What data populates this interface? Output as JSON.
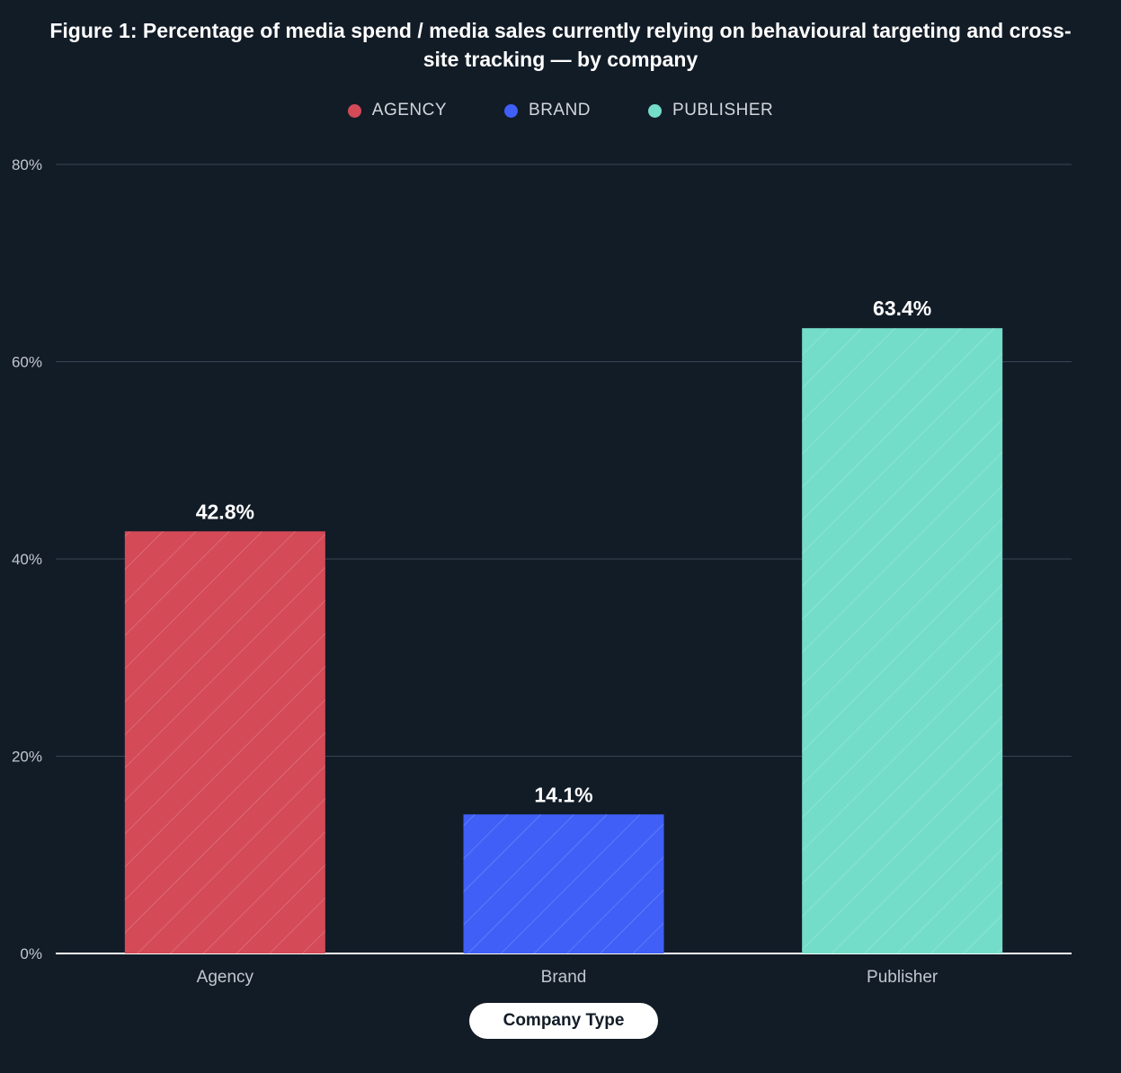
{
  "chart_data": {
    "type": "bar",
    "title_prefix": "Figure 1:",
    "title": "Percentage of media spend / media sales currently relying on behavioural targeting and cross-site tracking — by company",
    "xlabel": "Company Type",
    "ylabel": "",
    "categories": [
      "Agency",
      "Brand",
      "Publisher"
    ],
    "values": [
      42.8,
      14.1,
      63.4
    ],
    "data_labels": [
      "42.8%",
      "14.1%",
      "63.4%"
    ],
    "colors": [
      "#d44a57",
      "#3f5ff7",
      "#74ddc9"
    ],
    "ylim": [
      0,
      80
    ],
    "yticks": [
      0,
      20,
      40,
      60,
      80
    ],
    "ytick_labels": [
      "0%",
      "20%",
      "40%",
      "60%",
      "80%"
    ],
    "grid": true,
    "legend_position": "top-center",
    "legend": [
      {
        "label": "AGENCY",
        "color": "#d44a57"
      },
      {
        "label": "BRAND",
        "color": "#3f5ff7"
      },
      {
        "label": "PUBLISHER",
        "color": "#74ddc9"
      }
    ]
  }
}
